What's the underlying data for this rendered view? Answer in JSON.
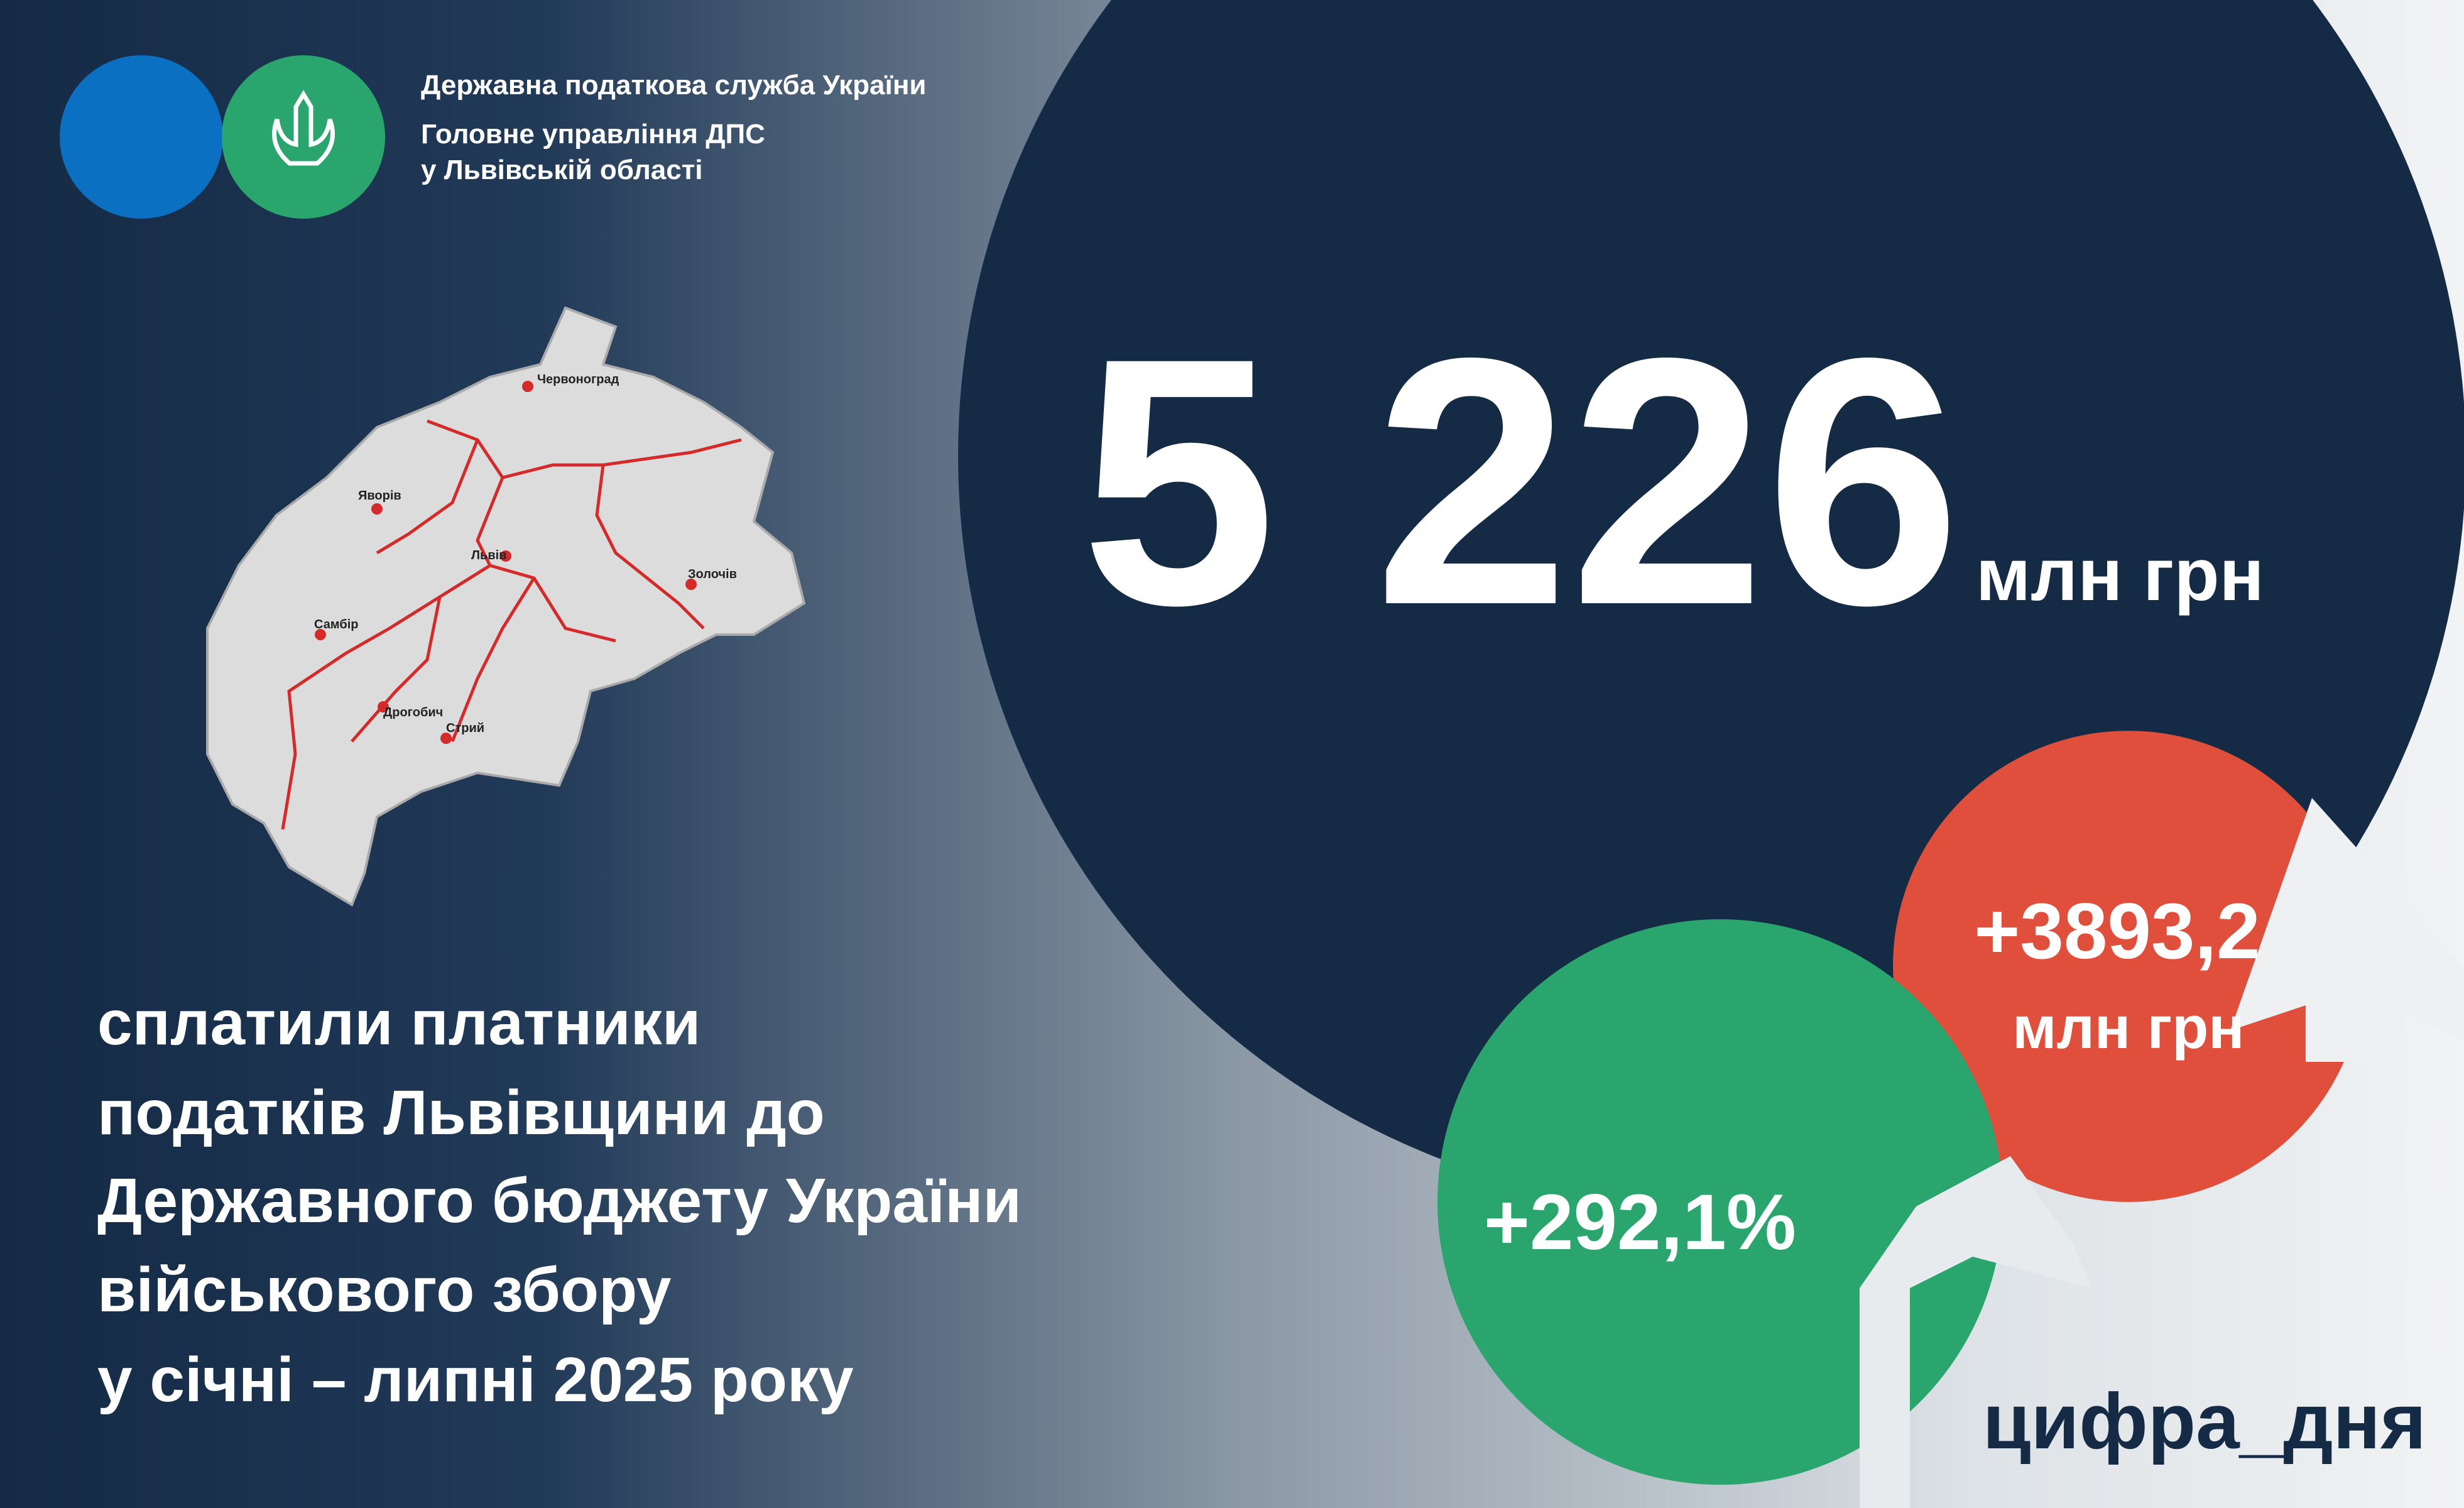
{
  "header": {
    "lines": [
      "Державна податкова служба України",
      "Головне управління ДПС",
      "у Львівській області"
    ]
  },
  "map": {
    "cities": [
      "Червоноград",
      "Яворів",
      "Львів",
      "Золочів",
      "Самбір",
      "Дрогобич",
      "Стрий"
    ]
  },
  "main": {
    "amount": "5 226",
    "unit": "млн грн"
  },
  "description": {
    "lines": [
      "сплатили платники",
      "податків Львівщини до",
      "Державного бюджету України",
      "військового збору",
      "у січні – липні 2025 року"
    ]
  },
  "growth_amount": {
    "value": "+3893,2",
    "unit": "млн грн"
  },
  "growth_percent": {
    "value": "+292,1%"
  },
  "hashtag": "цифра_дня"
}
